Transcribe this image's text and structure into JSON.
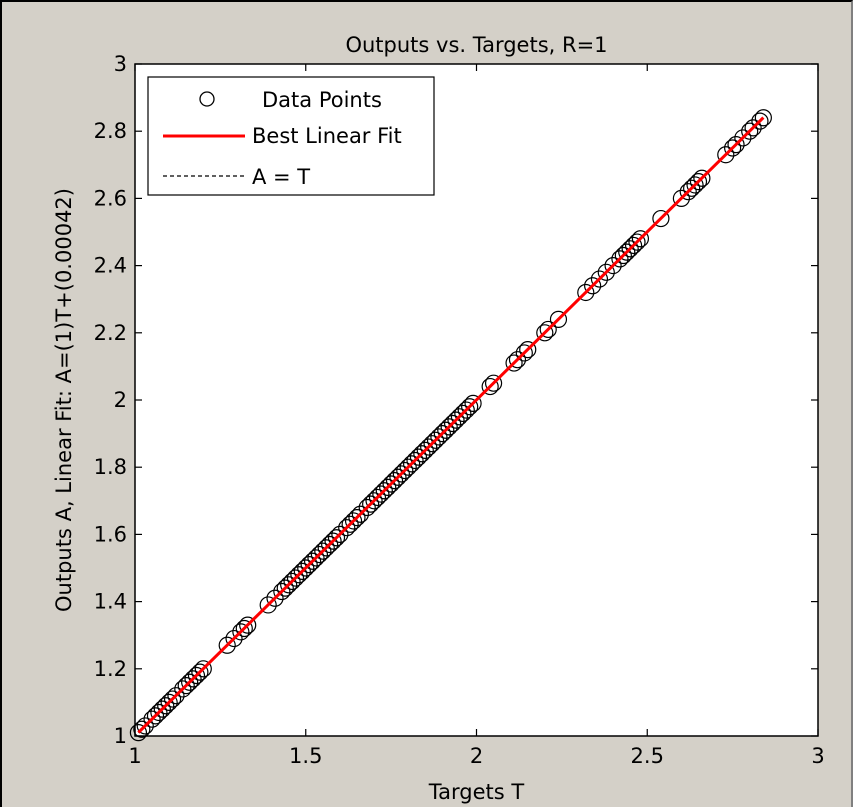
{
  "chart_data": {
    "type": "scatter",
    "title": "Outputs vs. Targets, R=1",
    "xlabel": "Targets T",
    "ylabel": "Outputs A,  Linear Fit: A=(1)T+(0.00042)",
    "xlim": [
      1,
      3
    ],
    "ylim": [
      1,
      3
    ],
    "x_ticks": [
      "1",
      "1.5",
      "2",
      "2.5",
      "3"
    ],
    "y_ticks": [
      "1",
      "1.2",
      "1.4",
      "1.6",
      "1.8",
      "2",
      "2.2",
      "2.4",
      "2.6",
      "2.8",
      "3"
    ],
    "legend": {
      "position": "top-left",
      "entries": [
        "Data Points",
        "Best Linear Fit",
        "A = T"
      ]
    },
    "fit": {
      "slope": 1,
      "intercept": 0.00042
    },
    "series": [
      {
        "name": "Data Points",
        "x": [
          1.01,
          1.02,
          1.03,
          1.05,
          1.06,
          1.07,
          1.08,
          1.09,
          1.1,
          1.11,
          1.12,
          1.14,
          1.15,
          1.16,
          1.17,
          1.18,
          1.19,
          1.2,
          1.27,
          1.29,
          1.31,
          1.32,
          1.33,
          1.39,
          1.41,
          1.43,
          1.44,
          1.45,
          1.46,
          1.47,
          1.48,
          1.49,
          1.5,
          1.51,
          1.52,
          1.53,
          1.54,
          1.55,
          1.56,
          1.57,
          1.58,
          1.59,
          1.6,
          1.62,
          1.63,
          1.64,
          1.65,
          1.66,
          1.68,
          1.69,
          1.7,
          1.71,
          1.72,
          1.73,
          1.74,
          1.75,
          1.76,
          1.77,
          1.78,
          1.79,
          1.8,
          1.81,
          1.82,
          1.83,
          1.84,
          1.85,
          1.86,
          1.87,
          1.88,
          1.89,
          1.9,
          1.91,
          1.92,
          1.93,
          1.94,
          1.95,
          1.96,
          1.97,
          1.98,
          1.99,
          2.04,
          2.05,
          2.11,
          2.12,
          2.14,
          2.15,
          2.2,
          2.21,
          2.24,
          2.32,
          2.34,
          2.36,
          2.38,
          2.4,
          2.42,
          2.43,
          2.44,
          2.45,
          2.46,
          2.47,
          2.48,
          2.54,
          2.6,
          2.62,
          2.63,
          2.64,
          2.65,
          2.66,
          2.73,
          2.75,
          2.76,
          2.78,
          2.8,
          2.81,
          2.83,
          2.84
        ],
        "y": [
          1.01,
          1.02,
          1.03,
          1.05,
          1.06,
          1.07,
          1.08,
          1.09,
          1.1,
          1.11,
          1.12,
          1.14,
          1.15,
          1.16,
          1.17,
          1.18,
          1.19,
          1.2,
          1.27,
          1.29,
          1.31,
          1.32,
          1.33,
          1.39,
          1.41,
          1.43,
          1.44,
          1.45,
          1.46,
          1.47,
          1.48,
          1.49,
          1.5,
          1.51,
          1.52,
          1.53,
          1.54,
          1.55,
          1.56,
          1.57,
          1.58,
          1.59,
          1.6,
          1.62,
          1.63,
          1.64,
          1.65,
          1.66,
          1.68,
          1.69,
          1.7,
          1.71,
          1.72,
          1.73,
          1.74,
          1.75,
          1.76,
          1.77,
          1.78,
          1.79,
          1.8,
          1.81,
          1.82,
          1.83,
          1.84,
          1.85,
          1.86,
          1.87,
          1.88,
          1.89,
          1.9,
          1.91,
          1.92,
          1.93,
          1.94,
          1.95,
          1.96,
          1.97,
          1.98,
          1.99,
          2.04,
          2.05,
          2.11,
          2.12,
          2.14,
          2.15,
          2.2,
          2.21,
          2.24,
          2.32,
          2.34,
          2.36,
          2.38,
          2.4,
          2.42,
          2.43,
          2.44,
          2.45,
          2.46,
          2.47,
          2.48,
          2.54,
          2.6,
          2.62,
          2.63,
          2.64,
          2.65,
          2.66,
          2.73,
          2.75,
          2.76,
          2.78,
          2.8,
          2.81,
          2.83,
          2.84
        ]
      }
    ],
    "colors": {
      "figure_background": "#d4d0c8",
      "axes_background": "#ffffff",
      "points": "#000000",
      "fit_line": "#ff0000",
      "identity_line": "#000000"
    }
  }
}
